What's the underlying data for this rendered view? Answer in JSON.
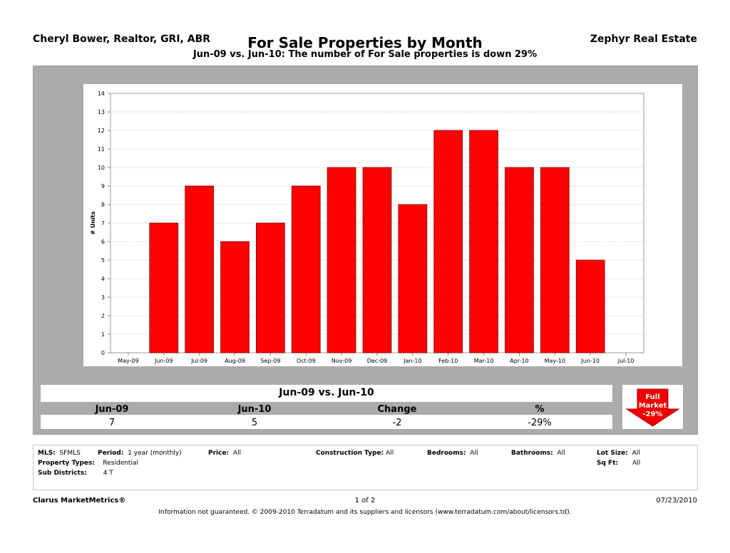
{
  "header": {
    "agent": "Cheryl Bower, Realtor, GRI, ABR",
    "brokerage": "Zephyr Real Estate",
    "title": "For Sale Properties by Month",
    "subtitle": "Jun-09 vs. Jun-10: The number of For Sale properties is down 29%"
  },
  "chart_data": {
    "type": "bar",
    "title": "For Sale Properties by Month",
    "ylabel": "# Units",
    "xlabel": "",
    "ylim": [
      0,
      14
    ],
    "yticks": [
      0,
      1,
      2,
      3,
      4,
      5,
      6,
      7,
      8,
      9,
      10,
      11,
      12,
      13,
      14
    ],
    "x_tick_labels": [
      "May-09",
      "Jun-09",
      "Jul-09",
      "Aug-09",
      "Sep-09",
      "Oct-09",
      "Nov-09",
      "Dec-09",
      "Jan-10",
      "Feb-10",
      "Mar-10",
      "Apr-10",
      "May-10",
      "Jun-10",
      "Jul-10"
    ],
    "categories": [
      "Jun-09",
      "Jul-09",
      "Aug-09",
      "Sep-09",
      "Oct-09",
      "Nov-09",
      "Dec-09",
      "Jan-10",
      "Feb-10",
      "Mar-10",
      "Apr-10",
      "May-10",
      "Jun-10"
    ],
    "values": [
      7,
      9,
      6,
      7,
      9,
      10,
      10,
      8,
      12,
      12,
      10,
      10,
      5
    ],
    "bar_color": "#ff0000",
    "grid": true
  },
  "summary": {
    "title": "Jun-09 vs. Jun-10",
    "headers": [
      "Jun-09",
      "Jun-10",
      "Change",
      "%"
    ],
    "values": [
      "7",
      "5",
      "-2",
      "-29%"
    ]
  },
  "badge": {
    "line1": "Full",
    "line2": "Market",
    "value": "-29%",
    "color": "#ee0000"
  },
  "criteria": {
    "mls_label": "MLS:",
    "mls": "SFMLS",
    "period_label": "Period:",
    "period": "1 year (monthly)",
    "price_label": "Price:",
    "price": "All",
    "construction_label": "Construction Type:",
    "construction": "All",
    "bedrooms_label": "Bedrooms:",
    "bedrooms": "All",
    "bathrooms_label": "Bathrooms:",
    "bathrooms": "All",
    "lotsize_label": "Lot Size:",
    "lotsize": "All",
    "proptypes_label": "Property Types:",
    "proptypes": "Residential",
    "sqft_label": "Sq Ft:",
    "sqft": "All",
    "subdistricts_label": "Sub Districts:",
    "subdistricts": "4 T"
  },
  "footer": {
    "left": "Clarus MarketMetrics®",
    "page": "1 of 2",
    "date": "07/23/2010",
    "disclaimer": "Information not guaranteed.  © 2009-2010 Terradatum and its suppliers and licensors (www.terradatum.com/about/licensors.td)."
  }
}
